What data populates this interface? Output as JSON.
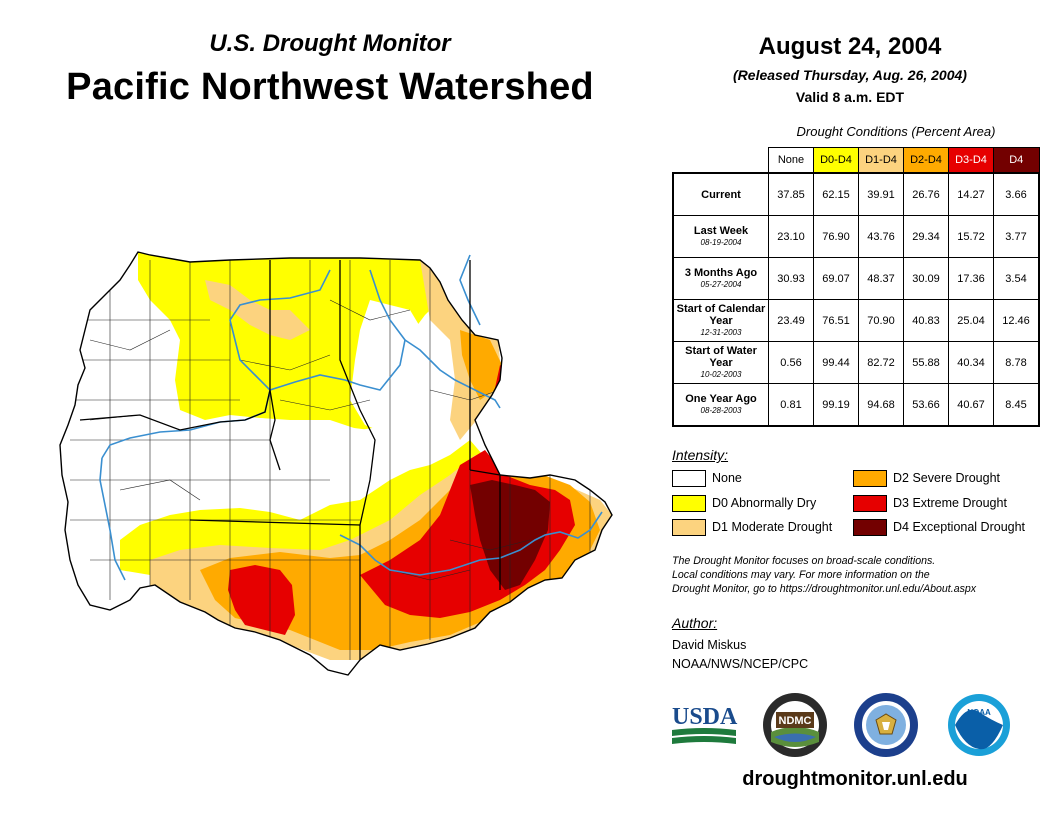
{
  "header": {
    "subtitle": "U.S. Drought Monitor",
    "title": "Pacific Northwest Watershed",
    "date": "August 24, 2004",
    "released": "(Released Thursday, Aug. 26, 2004)",
    "valid": "Valid 8 a.m. EDT"
  },
  "conditions_table": {
    "title": "Drought Conditions (Percent Area)",
    "columns": [
      "None",
      "D0-D4",
      "D1-D4",
      "D2-D4",
      "D3-D4",
      "D4"
    ],
    "column_colors": [
      "#ffffff",
      "#ffff00",
      "#fcd37f",
      "#ffaa00",
      "#e60000",
      "#730000"
    ],
    "rows": [
      {
        "label": "Current",
        "date": "",
        "values": [
          "37.85",
          "62.15",
          "39.91",
          "26.76",
          "14.27",
          "3.66"
        ]
      },
      {
        "label": "Last Week",
        "date": "08-19-2004",
        "values": [
          "23.10",
          "76.90",
          "43.76",
          "29.34",
          "15.72",
          "3.77"
        ]
      },
      {
        "label": "3 Months Ago",
        "date": "05-27-2004",
        "values": [
          "30.93",
          "69.07",
          "48.37",
          "30.09",
          "17.36",
          "3.54"
        ]
      },
      {
        "label": "Start of Calendar Year",
        "date": "12-31-2003",
        "values": [
          "23.49",
          "76.51",
          "70.90",
          "40.83",
          "25.04",
          "12.46"
        ]
      },
      {
        "label": "Start of Water Year",
        "date": "10-02-2003",
        "values": [
          "0.56",
          "99.44",
          "82.72",
          "55.88",
          "40.34",
          "8.78"
        ]
      },
      {
        "label": "One Year Ago",
        "date": "08-28-2003",
        "values": [
          "0.81",
          "99.19",
          "94.68",
          "53.66",
          "40.67",
          "8.45"
        ]
      }
    ]
  },
  "legend": {
    "title": "Intensity:",
    "items": [
      {
        "label": "None",
        "color": "#ffffff"
      },
      {
        "label": "D0 Abnormally Dry",
        "color": "#ffff00"
      },
      {
        "label": "D1 Moderate Drought",
        "color": "#fcd37f"
      },
      {
        "label": "D2 Severe Drought",
        "color": "#ffaa00"
      },
      {
        "label": "D3 Extreme Drought",
        "color": "#e60000"
      },
      {
        "label": "D4 Exceptional Drought",
        "color": "#730000"
      }
    ]
  },
  "note": {
    "line1": "The Drought Monitor focuses on broad-scale conditions.",
    "line2": "Local conditions may vary. For more information on the",
    "line3": "Drought Monitor, go to https://droughtmonitor.unl.edu/About.aspx"
  },
  "author": {
    "label": "Author:",
    "name": "David Miskus",
    "org": "NOAA/NWS/NCEP/CPC"
  },
  "logos": {
    "usda": "USDA",
    "ndmc": "NDMC",
    "noaa": "NOAA"
  },
  "footer": {
    "url": "droughtmonitor.unl.edu"
  },
  "colors": {
    "water": "#3a8fd0",
    "border": "#000000"
  }
}
